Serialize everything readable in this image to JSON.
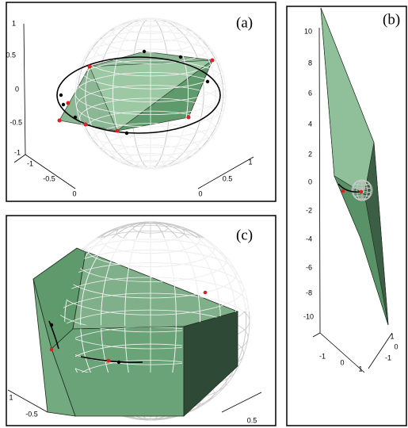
{
  "panels": [
    {
      "label": "(a)",
      "z_ticks": [
        "1",
        "0.5",
        "0",
        "-0.5",
        "-1"
      ],
      "x_ticks": [
        "-1",
        "-0.5",
        "0"
      ],
      "y_ticks": [
        "1",
        "0.5",
        "0"
      ]
    },
    {
      "label": "(b)",
      "z_ticks": [
        "10",
        "8",
        "6",
        "4",
        "2",
        "0",
        "-2",
        "-4",
        "-6",
        "-8",
        "-10"
      ],
      "x_ticks": [
        "-1",
        "0",
        "1"
      ],
      "y_ticks": [
        "1",
        "0",
        "-1"
      ]
    },
    {
      "label": "(c)",
      "x_ticks": [
        "1",
        "-0.5"
      ],
      "y_ticks": [
        "0.5"
      ]
    }
  ]
}
